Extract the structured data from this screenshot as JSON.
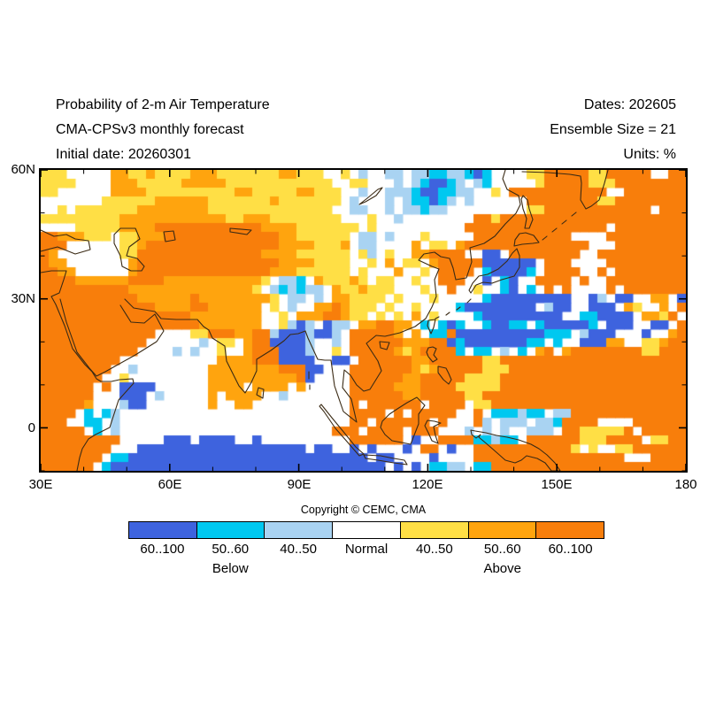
{
  "header": {
    "left_lines": [
      "Probability of 2-m Air Temperature",
      "CMA-CPSv3 monthly forecast",
      "Initial date: 20260301"
    ],
    "right_lines": [
      "Dates: 202605",
      "Ensemble Size = 21",
      "Units: %"
    ]
  },
  "footer": {
    "copyright": "Copyright © CEMC, CMA"
  },
  "legend": {
    "below_label": "Below",
    "above_label": "Above",
    "entries": [
      {
        "label": "60..100",
        "color": "#3E63DE"
      },
      {
        "label": "50..60",
        "color": "#00C8F0"
      },
      {
        "label": "40..50",
        "color": "#A9D3F2"
      },
      {
        "label": "Normal",
        "color": "#FFFFFF"
      },
      {
        "label": "40..50",
        "color": "#FFDF45"
      },
      {
        "label": "50..60",
        "color": "#FFA40E"
      },
      {
        "label": "60..100",
        "color": "#F87E0B"
      }
    ]
  },
  "chart_data": {
    "type": "heatmap",
    "title": "Probability of 2-m Air Temperature",
    "units": "%",
    "x_axis": {
      "ticks": [
        "30E",
        "60E",
        "90E",
        "120E",
        "150E",
        "180"
      ],
      "range_deg": [
        30,
        180
      ],
      "major_tick_deg": 30,
      "minor_tick_deg": 10
    },
    "y_axis": {
      "ticks": [
        "60N",
        "30N",
        "0"
      ],
      "range_deg": [
        60,
        -10
      ],
      "major_tick_deg": 30,
      "minor_tick_deg": 10
    },
    "grid_on": false,
    "legend_position": "bottom",
    "palette": {
      "B": "#3E63DE",
      "c": "#00C8F0",
      "l": "#A9D3F2",
      ".": "#FFFFFF",
      "y": "#FFDF45",
      "o": "#FFA40E",
      "O": "#F87E0B"
    },
    "palette_meaning": {
      "B": "below 60..100",
      "c": "below 50..60",
      "l": "below 40..50",
      ".": "normal",
      "y": "above 40..50",
      "o": "above 50..60",
      "O": "above 60..100"
    },
    "grid_cols": 73,
    "grid_rows": 34,
    "grid": [
      "yyy.....ooyyoyyyyoooyyyyyyyooyyy..y.l..ll.llccllcBc....yyOOOOOyyOOOOO..OO",
      "yyyy....oooyyyyyoooooyyyyyyyyyyyy..yy...l.lcBBcl.lc.....yOOOOOyyyOOOOOOOO",
      "yy......ooooyyyyyyyyyyooyyyyyooyyy..l..lllcBBccll..y.OOOOOOOOOOO..OOOOOOO",
      ".......yyyyyyooooooyyyyyyyoyyyyyyy.l...l.lccBcl.l......OOOOOOOOyyOOOOOOOO",
      "..y.yyyyyyyooooooooyyyyyyyyyyyyyy..ll..l.llcll.........yyOOOOOOOOOOOO.OOO",
      "yyyyyyyyyooooooooooooyyoooyyyyyyyy...y..l........OOyOOOOOOOOOOOOOOOOOOOOO",
      "....yyyyyooooOOOOOOOOOOOOooooyyyyyyy.y..........OOOOOOOOOOOOOOOO.OOOOOOOO",
      "OOoooyyy.yyoooOOOOOOOOOOOOOooyyyyyy.ll.l...y.....OOOOOOOOOOO....OOOOOOOOO",
      "OOO......yyoOOOOOOOOOOOOOOOooooyyyo.ll....o.yy.oOOOOOOOOOOOOOO...OOOOOOOO",
      "Oo.......yyOOOOOOOOOOOOOOooooyyyyyy.yl.y..ooOOOO..BB.OOOOOOOO..OOOOOOOOOO",
      "Ooo.......oOOOOOOOOOOOOOOOOooooyyyy..y.o.yy.oOOOOOBBBBBB.OOO....OOOOOOOOO",
      "OOoo......oOOOOOOOOOOOOOOOoooyyyyyy.y...o..y.OOOO.cBBBBc.OOOO..O.OOOOOOOO",
      "OOOOooooooOOOOoooooooooooy.llc.oyyyoy.yy..y..OOO..B.cB..OOOO.O..OOOOOOOOO",
      "OOOOOOOOOOooooooooooooooy.lclcll.oyyoyyy...y..O..y..cB.c.O.O....O.OOOOOOO",
      "OOOOOOOOOOOooooooOooooooooy.ll.l.ooyyyy.y...y.....cBBBBBBBBB..Bl.BB..oo.B",
      "OOOOOOOOOOOOOooooOOoooooo.y.l..ooOoyyy.y..y....cBBBBBBBB.lBB..BBB.oy..o.O",
      "OOOOOOOOOOOOOOOOOoooooooo..y.oooOOoyy.y.y.o.y....cBBBBBBBBB..ccBBBB.ooyO.",
      "OOOOOOOOOOOOOOOOOOooooooo..ylBl.Bll.ooOOoo.c.cBc..cBBcc.cBBBBBc.BBB..BB.O",
      "OOOOOOOOOOOOO....yyOOOooOOlBBBlBBl.OOOOOo.o.ccOBBBBBBBBBBccc.lBBB...B..oO",
      "OOOOOOOOOOOO......l.yy.oOOBBBBl..l.OOOOOOoooOOBcBBBBBBBcc.c..BBBoo..yyoOO",
      "OOOOOOOOOOO....l.l..y..oOOOBBBl..y.OOOOOoyoOOOOc.cc.l.c.oO.oOOOOOOOOyyOOO",
      "OOOOOOOOO...........ooooOOOBBBB..BB.OOOOOOooOOOOOOyyOOOOOOOOOOOOOOOOOOOOO",
      "OOOOOOOO..l........ooooooooOOOBB...OOOOOOOoyoOOOOOyyyOOOOOOOOOOOOOOOOOOOO",
      "OOOOOOO..y.........ooooooooooOB....OOOOOOooOOOOOyyyyOOOOOOOOOOOOOOOOOOOOO",
      "OOOOOO.O.BBBB......oooo.oooo.o.....OOOOOoooOOOOyyyyyOOOOOOOOOOOOOOOOOOOOO",
      "OOOOOO...BBB.l.....o.oooo..l.......OOOOOOooOOOOOyyOOOOOOOOOOOOOOOOOOOOOOO",
      "OOOOOo...lBB.......o..oo...........O.OOOOOO.OOOO.yyOOOOOOOOOOOOOOOOOOOOOO",
      "OOOO.c.cl..........................OOOO.O.OOOOO..O.ccclcc.llOOOOOOOOOOOOO",
      "OOO..cc.l..........................OO.OOOOOO.O...Ol.lll.llcOOOO....OOOOOOO",
      "OOOOO.c.l........................OOO.OOOO.OOO...l.l.l..lll.OOyyyyyO.OOOOO",
      "OOOOOOOOO.....BBB.BBBB..B..........OOOOOO.B..OOOOcclcc.OOOOOOyyyOOOO.yyOO",
      "OOOOOOOO...BBBBBBBBBBBBBBBBBBB.BB..B.B...B.OO.B..OOOOOOOOOOOy.y..yyOOOOOO",
      "OOOOOOO.ccBBBBBBBBBBBBBBBBBBBBBBBBBBB.BB....B....OOOOOOOOOOOOOOOOO...OOOO",
      "OOOOOO.cBBBBBBBBBBBBBBBBBBBBBBBBBBBBBBB.B.B.ccll.ccOOOOOOOOOOOOOOOOOOOOOO"
    ]
  }
}
